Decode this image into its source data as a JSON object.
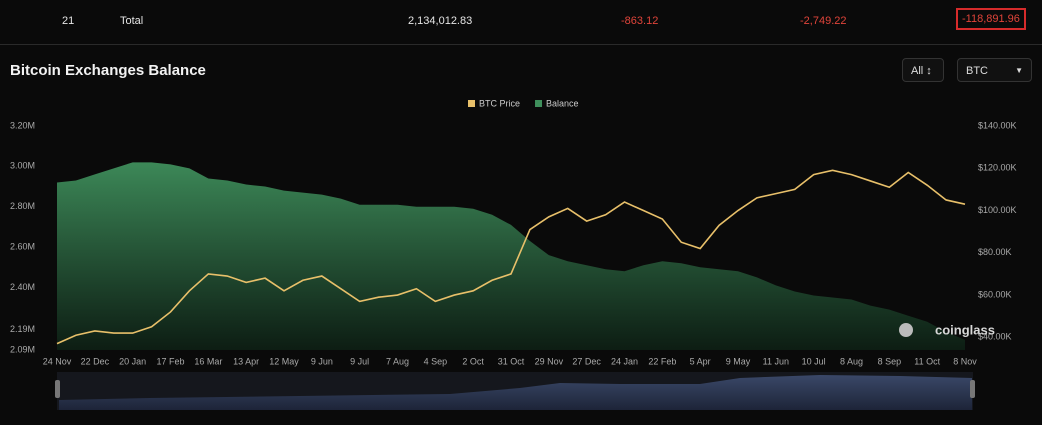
{
  "summary_row": {
    "rank": "21",
    "label": "Total",
    "balance": "2,134,012.83",
    "change_1d": "-863.12",
    "change_7d": "-2,749.22",
    "change_30d": "-118,891.96"
  },
  "controls": {
    "range": "All",
    "unit": "BTC"
  },
  "chart_data": {
    "type": "line",
    "title": "Bitcoin Exchanges Balance",
    "watermark": "coinglass",
    "categories": [
      "24 Nov",
      null,
      "22 Dec",
      null,
      "20 Jan",
      null,
      "17 Feb",
      null,
      "16 Mar",
      null,
      "13 Apr",
      null,
      "12 May",
      null,
      "9 Jun",
      null,
      "9 Jul",
      null,
      "7 Aug",
      null,
      "4 Sep",
      null,
      "2 Oct",
      null,
      "31 Oct",
      null,
      "29 Nov",
      null,
      "27 Dec",
      null,
      "24 Jan",
      null,
      "22 Feb",
      null,
      "5 Apr",
      null,
      "9 May",
      null,
      "11 Jun",
      null,
      "10 Jul",
      null,
      "8 Aug",
      null,
      "8 Sep",
      null,
      "11 Oct",
      null,
      "8 Nov"
    ],
    "series": [
      {
        "name": "BTC Price",
        "color": "#e8c06a",
        "axis": "y2",
        "style": "line",
        "values": [
          37000,
          41000,
          43000,
          42000,
          42000,
          45000,
          52000,
          62000,
          70000,
          69000,
          66000,
          68000,
          62000,
          67000,
          69000,
          63000,
          57000,
          59000,
          60000,
          63000,
          57000,
          60000,
          62000,
          67000,
          70000,
          91000,
          97000,
          101000,
          95000,
          98000,
          104000,
          100000,
          96000,
          85000,
          82000,
          93000,
          100000,
          106000,
          108000,
          110000,
          117000,
          119000,
          117000,
          114000,
          111000,
          118000,
          112000,
          105000,
          103000
        ]
      },
      {
        "name": "Balance",
        "color": "#3f8f5c",
        "style": "area",
        "values": [
          2920000,
          2930000,
          2960000,
          2990000,
          3020000,
          3020000,
          3010000,
          2990000,
          2940000,
          2930000,
          2910000,
          2900000,
          2880000,
          2870000,
          2860000,
          2840000,
          2810000,
          2810000,
          2810000,
          2800000,
          2800000,
          2800000,
          2790000,
          2760000,
          2710000,
          2630000,
          2560000,
          2530000,
          2510000,
          2490000,
          2480000,
          2510000,
          2530000,
          2520000,
          2500000,
          2490000,
          2480000,
          2450000,
          2410000,
          2380000,
          2360000,
          2350000,
          2340000,
          2310000,
          2290000,
          2260000,
          2230000,
          2180000,
          2140000
        ]
      }
    ],
    "ylim": [
      2090000,
      3200000
    ],
    "yticks": [
      {
        "value": 3200000,
        "label": "3.20M"
      },
      {
        "value": 3000000,
        "label": "3.00M"
      },
      {
        "value": 2800000,
        "label": "2.80M"
      },
      {
        "value": 2600000,
        "label": "2.60M"
      },
      {
        "value": 2400000,
        "label": "2.40M"
      },
      {
        "value": 2190000,
        "label": "2.19M"
      },
      {
        "value": 2090000,
        "label": "2.09M"
      }
    ],
    "y2lim": [
      34000,
      140000
    ],
    "y2ticks": [
      {
        "value": 140000,
        "label": "$140.00K"
      },
      {
        "value": 120000,
        "label": "$120.00K"
      },
      {
        "value": 100000,
        "label": "$100.00K"
      },
      {
        "value": 80000,
        "label": "$80.00K"
      },
      {
        "value": 60000,
        "label": "$60.00K"
      },
      {
        "value": 40000,
        "label": "$40.00K"
      }
    ]
  }
}
